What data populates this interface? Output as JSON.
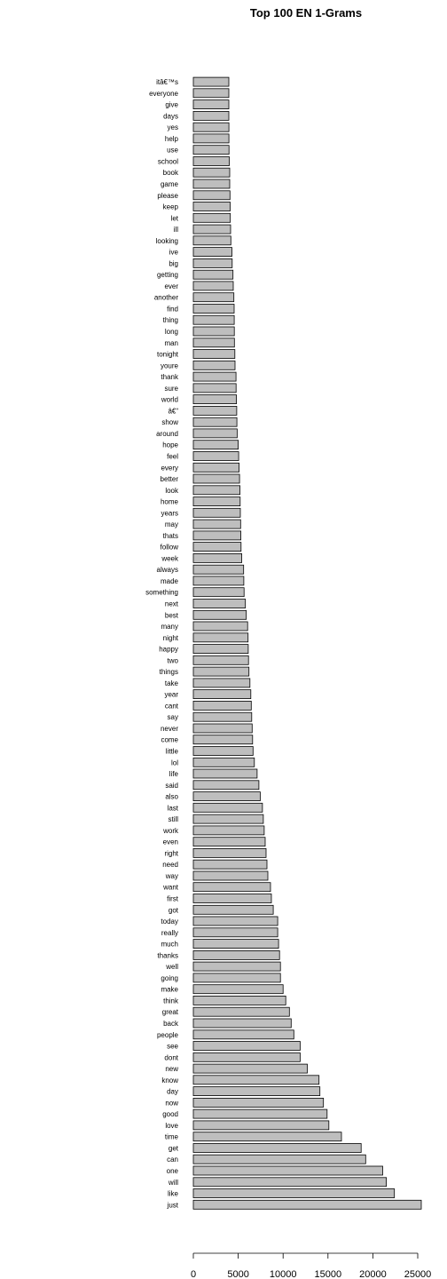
{
  "chart_data": {
    "type": "bar",
    "orientation": "horizontal",
    "title": "Top 100 EN 1-Grams",
    "xlabel": "",
    "ylabel": "",
    "xlim": [
      0,
      25000
    ],
    "x_ticks": [
      "0",
      "5000",
      "10000",
      "15000",
      "20000",
      "25000"
    ],
    "bar_fill": "#bebebe",
    "bar_stroke": "#000000",
    "categories": [
      "itâ€™s",
      "everyone",
      "give",
      "days",
      "yes",
      "help",
      "use",
      "school",
      "book",
      "game",
      "please",
      "keep",
      "let",
      "ill",
      "looking",
      "ive",
      "big",
      "getting",
      "ever",
      "another",
      "find",
      "thing",
      "long",
      "man",
      "tonight",
      "youre",
      "thank",
      "sure",
      "world",
      "â€“",
      "show",
      "around",
      "hope",
      "feel",
      "every",
      "better",
      "look",
      "home",
      "years",
      "may",
      "thats",
      "follow",
      "week",
      "always",
      "made",
      "something",
      "next",
      "best",
      "many",
      "night",
      "happy",
      "two",
      "things",
      "take",
      "year",
      "cant",
      "say",
      "never",
      "come",
      "little",
      "lol",
      "life",
      "said",
      "also",
      "last",
      "still",
      "work",
      "even",
      "right",
      "need",
      "way",
      "want",
      "first",
      "got",
      "today",
      "really",
      "much",
      "thanks",
      "well",
      "going",
      "make",
      "think",
      "great",
      "back",
      "people",
      "see",
      "dont",
      "new",
      "know",
      "day",
      "now",
      "good",
      "love",
      "time",
      "get",
      "can",
      "one",
      "will",
      "like",
      "just"
    ],
    "values": [
      3950,
      3950,
      3950,
      3950,
      3960,
      3960,
      3970,
      4000,
      4050,
      4050,
      4080,
      4100,
      4120,
      4150,
      4180,
      4300,
      4330,
      4420,
      4450,
      4520,
      4550,
      4560,
      4570,
      4580,
      4620,
      4640,
      4750,
      4760,
      4800,
      4830,
      4850,
      4880,
      5000,
      5050,
      5100,
      5150,
      5200,
      5220,
      5240,
      5270,
      5300,
      5320,
      5400,
      5600,
      5620,
      5650,
      5800,
      5900,
      6050,
      6100,
      6120,
      6150,
      6200,
      6300,
      6400,
      6450,
      6500,
      6550,
      6600,
      6650,
      6800,
      7100,
      7300,
      7450,
      7700,
      7800,
      7900,
      8000,
      8100,
      8200,
      8300,
      8600,
      8700,
      8900,
      9400,
      9400,
      9500,
      9600,
      9700,
      9700,
      10000,
      10300,
      10700,
      10900,
      11200,
      11900,
      11900,
      12700,
      14000,
      14100,
      14500,
      14900,
      15100,
      16500,
      18700,
      19200,
      21100,
      21500,
      22400,
      25400
    ]
  }
}
